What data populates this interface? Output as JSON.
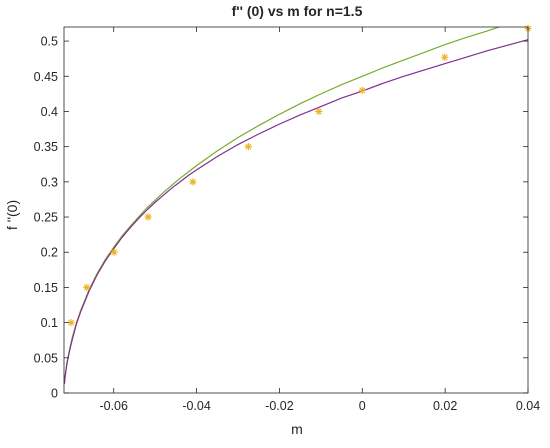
{
  "chart_data": {
    "type": "line",
    "title": "f'' (0) vs m for n=1.5",
    "xlabel": "m",
    "ylabel": "f ''(0)",
    "xlim": [
      -0.072,
      0.04
    ],
    "ylim": [
      0,
      0.52
    ],
    "x_ticks": [
      -0.06,
      -0.04,
      -0.02,
      0,
      0.02,
      0.04
    ],
    "x_tick_labels": [
      "-0.06",
      "-0.04",
      "-0.02",
      "0",
      "0.02",
      "0.04"
    ],
    "y_ticks": [
      0,
      0.05,
      0.1,
      0.15,
      0.2,
      0.25,
      0.3,
      0.35,
      0.4,
      0.45,
      0.5
    ],
    "y_tick_labels": [
      "0",
      "0.05",
      "0.1",
      "0.15",
      "0.2",
      "0.25",
      "0.3",
      "0.35",
      "0.4",
      "0.45",
      "0.5"
    ],
    "grid": false,
    "series": [
      {
        "color": "#77AC30",
        "style": "line",
        "x": [
          -0.0719,
          -0.0718,
          -0.0716,
          -0.0713,
          -0.071,
          -0.0705,
          -0.07,
          -0.069,
          -0.068,
          -0.066,
          -0.064,
          -0.062,
          -0.06,
          -0.058,
          -0.056,
          -0.054,
          -0.052,
          -0.05,
          -0.048,
          -0.046,
          -0.044,
          -0.042,
          -0.04,
          -0.035,
          -0.03,
          -0.025,
          -0.02,
          -0.015,
          -0.01,
          -0.005,
          0,
          0.005,
          0.01,
          0.015,
          0.02,
          0.025,
          0.03,
          0.035,
          0.04
        ],
        "y": [
          0.014,
          0.02,
          0.03,
          0.042,
          0.052,
          0.066,
          0.079,
          0.1,
          0.117,
          0.146,
          0.17,
          0.19,
          0.207,
          0.223,
          0.237,
          0.25,
          0.263,
          0.274,
          0.285,
          0.295,
          0.305,
          0.314,
          0.323,
          0.344,
          0.363,
          0.38,
          0.396,
          0.411,
          0.425,
          0.438,
          0.45,
          0.462,
          0.473,
          0.484,
          0.495,
          0.505,
          0.514,
          0.524,
          0.533
        ]
      },
      {
        "color": "#7E2F8E",
        "style": "line",
        "x": [
          -0.0719,
          -0.0718,
          -0.0716,
          -0.0713,
          -0.071,
          -0.0705,
          -0.07,
          -0.069,
          -0.068,
          -0.066,
          -0.064,
          -0.062,
          -0.06,
          -0.058,
          -0.056,
          -0.054,
          -0.052,
          -0.05,
          -0.048,
          -0.046,
          -0.044,
          -0.042,
          -0.04,
          -0.035,
          -0.03,
          -0.025,
          -0.02,
          -0.015,
          -0.01,
          -0.005,
          0,
          0.005,
          0.01,
          0.015,
          0.02,
          0.025,
          0.03,
          0.035,
          0.04
        ],
        "y": [
          0.013,
          0.02,
          0.029,
          0.041,
          0.05,
          0.064,
          0.076,
          0.098,
          0.115,
          0.144,
          0.168,
          0.188,
          0.205,
          0.221,
          0.235,
          0.248,
          0.26,
          0.271,
          0.281,
          0.291,
          0.3,
          0.309,
          0.317,
          0.336,
          0.353,
          0.368,
          0.382,
          0.395,
          0.407,
          0.419,
          0.429,
          0.44,
          0.45,
          0.459,
          0.468,
          0.477,
          0.486,
          0.494,
          0.502
        ]
      },
      {
        "color": "#EDB120",
        "style": "markers",
        "marker": "asterisk",
        "x": [
          -0.0703,
          -0.0665,
          -0.0599,
          -0.0517,
          -0.0409,
          -0.0275,
          -0.0105,
          0.0,
          0.0199,
          0.04
        ],
        "y": [
          0.1,
          0.15,
          0.2,
          0.25,
          0.3,
          0.35,
          0.4,
          0.43,
          0.477,
          0.518
        ]
      }
    ]
  }
}
